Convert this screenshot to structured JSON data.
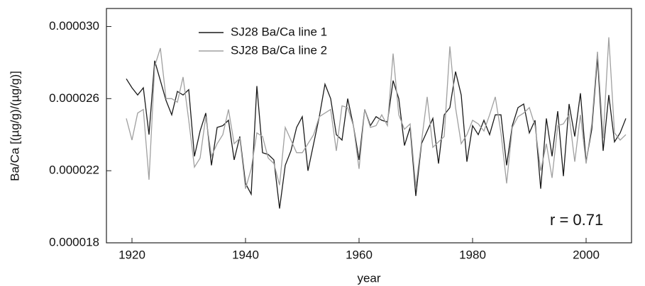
{
  "chart_data": {
    "type": "line",
    "x_label": "year",
    "y_label": "Ba/Ca [(µg/g)/(µg/g)]",
    "annotation": "r = 0.71",
    "x": [
      1919,
      1920,
      1921,
      1922,
      1923,
      1924,
      1925,
      1926,
      1927,
      1928,
      1929,
      1930,
      1931,
      1932,
      1933,
      1934,
      1935,
      1936,
      1937,
      1938,
      1939,
      1940,
      1941,
      1942,
      1943,
      1944,
      1945,
      1946,
      1947,
      1948,
      1949,
      1950,
      1951,
      1952,
      1953,
      1954,
      1955,
      1956,
      1957,
      1958,
      1959,
      1960,
      1961,
      1962,
      1963,
      1964,
      1965,
      1966,
      1967,
      1968,
      1969,
      1970,
      1971,
      1972,
      1973,
      1974,
      1975,
      1976,
      1977,
      1978,
      1979,
      1980,
      1981,
      1982,
      1983,
      1984,
      1985,
      1986,
      1987,
      1988,
      1989,
      1990,
      1991,
      1992,
      1993,
      1994,
      1995,
      1996,
      1997,
      1998,
      1999,
      2000,
      2001,
      2002,
      2003,
      2004,
      2005,
      2006,
      2007
    ],
    "series": [
      {
        "name": "SJ28 Ba/Ca line 1",
        "color": "#1a1a1a",
        "values": [
          2.71e-05,
          2.66e-05,
          2.62e-05,
          2.66e-05,
          2.4e-05,
          2.81e-05,
          2.7e-05,
          2.59e-05,
          2.51e-05,
          2.64e-05,
          2.62e-05,
          2.65e-05,
          2.28e-05,
          2.42e-05,
          2.52e-05,
          2.23e-05,
          2.44e-05,
          2.45e-05,
          2.48e-05,
          2.26e-05,
          2.39e-05,
          2.13e-05,
          2.07e-05,
          2.67e-05,
          2.3e-05,
          2.29e-05,
          2.26e-05,
          1.99e-05,
          2.23e-05,
          2.31e-05,
          2.44e-05,
          2.5e-05,
          2.2e-05,
          2.35e-05,
          2.5e-05,
          2.68e-05,
          2.6e-05,
          2.4e-05,
          2.37e-05,
          2.6e-05,
          2.45e-05,
          2.26e-05,
          2.54e-05,
          2.45e-05,
          2.5e-05,
          2.48e-05,
          2.47e-05,
          2.7e-05,
          2.6e-05,
          2.34e-05,
          2.44e-05,
          2.06e-05,
          2.35e-05,
          2.42e-05,
          2.49e-05,
          2.24e-05,
          2.51e-05,
          2.55e-05,
          2.75e-05,
          2.62e-05,
          2.25e-05,
          2.45e-05,
          2.4e-05,
          2.48e-05,
          2.4e-05,
          2.51e-05,
          2.51e-05,
          2.23e-05,
          2.45e-05,
          2.55e-05,
          2.57e-05,
          2.41e-05,
          2.48e-05,
          2.1e-05,
          2.49e-05,
          2.28e-05,
          2.53e-05,
          2.17e-05,
          2.57e-05,
          2.39e-05,
          2.63e-05,
          2.25e-05,
          2.43e-05,
          2.83e-05,
          2.31e-05,
          2.62e-05,
          2.36e-05,
          2.41e-05,
          2.49e-05
        ]
      },
      {
        "name": "SJ28 Ba/Ca line 2",
        "color": "#a0a0a0",
        "values": [
          2.49e-05,
          2.37e-05,
          2.52e-05,
          2.54e-05,
          2.15e-05,
          2.78e-05,
          2.88e-05,
          2.6e-05,
          2.6e-05,
          2.58e-05,
          2.72e-05,
          2.48e-05,
          2.22e-05,
          2.27e-05,
          2.5e-05,
          2.28e-05,
          2.35e-05,
          2.4e-05,
          2.54e-05,
          2.35e-05,
          2.38e-05,
          2.1e-05,
          2.21e-05,
          2.41e-05,
          2.39e-05,
          2.27e-05,
          2.24e-05,
          2.12e-05,
          2.44e-05,
          2.37e-05,
          2.3e-05,
          2.3e-05,
          2.35e-05,
          2.4e-05,
          2.5e-05,
          2.52e-05,
          2.54e-05,
          2.31e-05,
          2.56e-05,
          2.55e-05,
          2.45e-05,
          2.21e-05,
          2.54e-05,
          2.44e-05,
          2.45e-05,
          2.51e-05,
          2.45e-05,
          2.85e-05,
          2.51e-05,
          2.43e-05,
          2.46e-05,
          2.11e-05,
          2.36e-05,
          2.61e-05,
          2.33e-05,
          2.36e-05,
          2.39e-05,
          2.89e-05,
          2.55e-05,
          2.35e-05,
          2.4e-05,
          2.48e-05,
          2.46e-05,
          2.42e-05,
          2.51e-05,
          2.61e-05,
          2.41e-05,
          2.13e-05,
          2.44e-05,
          2.5e-05,
          2.52e-05,
          2.55e-05,
          2.45e-05,
          2.2e-05,
          2.35e-05,
          2.16e-05,
          2.45e-05,
          2.46e-05,
          2.51e-05,
          2.25e-05,
          2.51e-05,
          2.24e-05,
          2.46e-05,
          2.86e-05,
          2.38e-05,
          2.94e-05,
          2.41e-05,
          2.37e-05,
          2.4e-05
        ]
      }
    ],
    "xlim": [
      1915.5,
      2008
    ],
    "xticks": [
      1920,
      1940,
      1960,
      1980,
      2000
    ],
    "ylim": [
      1.8e-05,
      3.1e-05
    ],
    "yticks": [
      {
        "value": 1.8e-05,
        "label": "0.000018"
      },
      {
        "value": 2.2e-05,
        "label": "0.000022"
      },
      {
        "value": 2.6e-05,
        "label": "0.000026"
      },
      {
        "value": 3e-05,
        "label": "0.000030"
      }
    ],
    "grid": false,
    "legend": "upper left"
  }
}
